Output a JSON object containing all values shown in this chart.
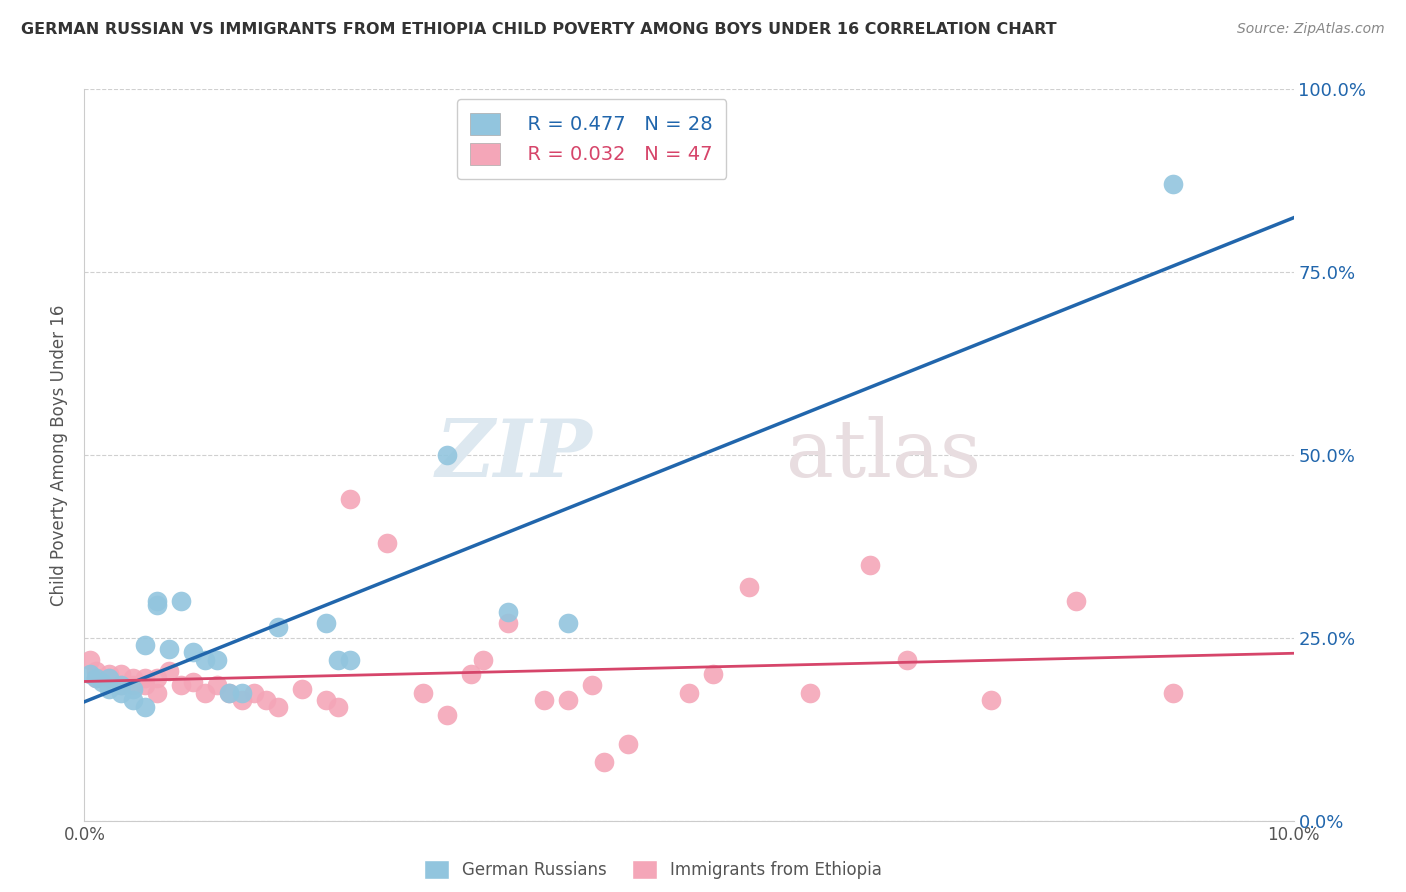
{
  "title": "GERMAN RUSSIAN VS IMMIGRANTS FROM ETHIOPIA CHILD POVERTY AMONG BOYS UNDER 16 CORRELATION CHART",
  "source": "Source: ZipAtlas.com",
  "ylabel": "Child Poverty Among Boys Under 16",
  "legend_label1": "German Russians",
  "legend_label2": "Immigrants from Ethiopia",
  "legend_R1": "R = 0.477",
  "legend_N1": "N = 28",
  "legend_R2": "R = 0.032",
  "legend_N2": "N = 47",
  "xlim": [
    0.0,
    0.1
  ],
  "ylim": [
    -0.02,
    1.05
  ],
  "plot_ylim": [
    0.0,
    1.0
  ],
  "xticks": [
    0.0,
    0.02,
    0.04,
    0.06,
    0.08,
    0.1
  ],
  "yticks": [
    0.0,
    0.25,
    0.5,
    0.75,
    1.0
  ],
  "ytick_labels": [
    "0.0%",
    "25.0%",
    "50.0%",
    "75.0%",
    "100.0%"
  ],
  "xtick_labels": [
    "0.0%",
    "",
    "",
    "",
    "",
    "10.0%"
  ],
  "color_blue": "#92c5de",
  "color_pink": "#f4a6b8",
  "line_blue": "#2166ac",
  "line_pink": "#d6456a",
  "blue_points": [
    [
      0.0005,
      0.2
    ],
    [
      0.001,
      0.195
    ],
    [
      0.0015,
      0.19
    ],
    [
      0.002,
      0.195
    ],
    [
      0.002,
      0.18
    ],
    [
      0.003,
      0.185
    ],
    [
      0.003,
      0.175
    ],
    [
      0.004,
      0.18
    ],
    [
      0.004,
      0.165
    ],
    [
      0.005,
      0.24
    ],
    [
      0.005,
      0.155
    ],
    [
      0.006,
      0.3
    ],
    [
      0.006,
      0.295
    ],
    [
      0.007,
      0.235
    ],
    [
      0.008,
      0.3
    ],
    [
      0.009,
      0.23
    ],
    [
      0.01,
      0.22
    ],
    [
      0.011,
      0.22
    ],
    [
      0.012,
      0.175
    ],
    [
      0.013,
      0.175
    ],
    [
      0.016,
      0.265
    ],
    [
      0.02,
      0.27
    ],
    [
      0.021,
      0.22
    ],
    [
      0.022,
      0.22
    ],
    [
      0.03,
      0.5
    ],
    [
      0.035,
      0.285
    ],
    [
      0.04,
      0.27
    ],
    [
      0.09,
      0.87
    ]
  ],
  "pink_points": [
    [
      0.0005,
      0.22
    ],
    [
      0.001,
      0.205
    ],
    [
      0.001,
      0.195
    ],
    [
      0.002,
      0.2
    ],
    [
      0.002,
      0.195
    ],
    [
      0.003,
      0.2
    ],
    [
      0.003,
      0.185
    ],
    [
      0.004,
      0.195
    ],
    [
      0.004,
      0.185
    ],
    [
      0.005,
      0.195
    ],
    [
      0.005,
      0.185
    ],
    [
      0.006,
      0.195
    ],
    [
      0.006,
      0.175
    ],
    [
      0.007,
      0.205
    ],
    [
      0.008,
      0.185
    ],
    [
      0.009,
      0.19
    ],
    [
      0.01,
      0.175
    ],
    [
      0.011,
      0.185
    ],
    [
      0.012,
      0.175
    ],
    [
      0.013,
      0.165
    ],
    [
      0.014,
      0.175
    ],
    [
      0.015,
      0.165
    ],
    [
      0.016,
      0.155
    ],
    [
      0.018,
      0.18
    ],
    [
      0.02,
      0.165
    ],
    [
      0.021,
      0.155
    ],
    [
      0.022,
      0.44
    ],
    [
      0.025,
      0.38
    ],
    [
      0.028,
      0.175
    ],
    [
      0.03,
      0.145
    ],
    [
      0.032,
      0.2
    ],
    [
      0.033,
      0.22
    ],
    [
      0.035,
      0.27
    ],
    [
      0.038,
      0.165
    ],
    [
      0.04,
      0.165
    ],
    [
      0.042,
      0.185
    ],
    [
      0.043,
      0.08
    ],
    [
      0.045,
      0.105
    ],
    [
      0.05,
      0.175
    ],
    [
      0.052,
      0.2
    ],
    [
      0.055,
      0.32
    ],
    [
      0.06,
      0.175
    ],
    [
      0.065,
      0.35
    ],
    [
      0.068,
      0.22
    ],
    [
      0.075,
      0.165
    ],
    [
      0.082,
      0.3
    ],
    [
      0.09,
      0.175
    ]
  ],
  "watermark_zip": "ZIP",
  "watermark_atlas": "atlas",
  "background_color": "#ffffff",
  "grid_color": "#d0d0d0"
}
